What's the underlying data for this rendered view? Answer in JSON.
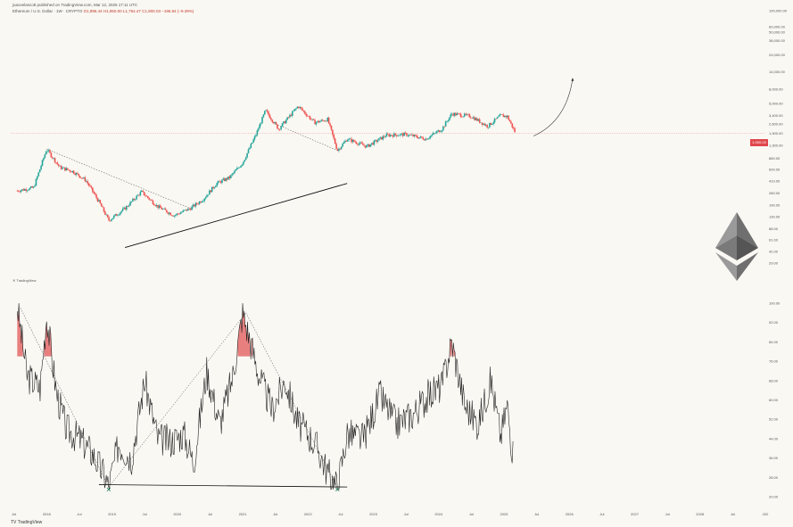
{
  "header": {
    "publisher_line": "joaovelasco8 published on TradingView.com, Mar 12, 2025 17:11 UTC",
    "symbol_line": "Ethereum / U.S. Dollar · 1W · CRYPTO",
    "ohlc_text": "O1,896.44 H1,950.00 L1,754.47 C1,900.03 −196.84 (−9.39%)"
  },
  "price_badge": "1,900.03",
  "watermark_text": "TradingView",
  "footer_logo": "TradingView",
  "colors": {
    "background": "#faf8f3",
    "up_candle": "#26a69a",
    "down_candle": "#ef5350",
    "oscillator_line": "#222222",
    "overheat_fill": "#e46a6a",
    "trendline": "#111111",
    "eth_logo": "#8a8a8a"
  },
  "icons": {
    "watermark": "tradingview-icon",
    "logo": "ethereum-logo-icon",
    "bottom_markers": "x-marker-icon"
  },
  "chart_data": [
    {
      "type": "candlestick",
      "scale": "log",
      "ylim": [
        15,
        100000
      ],
      "y_ticks": [
        "100,000.00",
        "60,000.00",
        "50,000.00",
        "38,000.00",
        "24,000.00",
        "14,000.00",
        "8,000.00",
        "5,000.00",
        "3,400.00",
        "2,600.00",
        "1,900.00",
        "1,300.00",
        "860.00",
        "600.00",
        "410.00",
        "280.00",
        "190.00",
        "130.00",
        "88.00",
        "61.00",
        "42.00",
        "29.00"
      ],
      "x_ticks": [
        "Jul",
        "2018",
        "Jul",
        "2019",
        "Jul",
        "2020",
        "Jul",
        "2021",
        "Jul",
        "2022",
        "Jul",
        "2023",
        "Jul",
        "2024",
        "Jul",
        "2025",
        "Jul",
        "2026",
        "Jul",
        "2027",
        "Jul",
        "2028",
        "Jul",
        "202"
      ],
      "close_series": {
        "x": [
          2017.55,
          2017.8,
          2018.0,
          2018.2,
          2018.4,
          2018.6,
          2018.8,
          2018.95,
          2019.2,
          2019.45,
          2019.7,
          2019.95,
          2020.2,
          2020.4,
          2020.6,
          2020.8,
          2021.0,
          2021.2,
          2021.35,
          2021.55,
          2021.85,
          2022.1,
          2022.3,
          2022.45,
          2022.6,
          2022.9,
          2023.2,
          2023.5,
          2023.8,
          2024.05,
          2024.2,
          2024.5,
          2024.75,
          2024.95,
          2025.05,
          2025.18
        ],
        "y": [
          300,
          330,
          1150,
          640,
          560,
          420,
          210,
          115,
          170,
          290,
          180,
          135,
          170,
          230,
          380,
          460,
          740,
          1800,
          4000,
          2200,
          4600,
          2700,
          3000,
          1100,
          1600,
          1250,
          1800,
          1850,
          1600,
          2200,
          3600,
          3300,
          2400,
          3400,
          3300,
          1900
        ]
      },
      "annotations": [
        "dashed trend: 2018 peak to 2020 low",
        "solid support line: 2019 to 2022",
        "projection curve to 2026"
      ]
    },
    {
      "type": "line",
      "ylim": [
        20,
        100
      ],
      "y_ticks": [
        "100.00",
        "92.00",
        "84.00",
        "76.00",
        "68.00",
        "60.00",
        "52.00",
        "44.00",
        "36.00",
        "28.00",
        "20.00"
      ],
      "x": [
        2017.55,
        2017.7,
        2017.9,
        2018.0,
        2018.15,
        2018.3,
        2018.5,
        2018.7,
        2018.9,
        2018.95,
        2019.1,
        2019.3,
        2019.5,
        2019.7,
        2019.9,
        2020.1,
        2020.25,
        2020.45,
        2020.65,
        2020.85,
        2021.0,
        2021.1,
        2021.25,
        2021.45,
        2021.65,
        2021.85,
        2022.0,
        2022.15,
        2022.3,
        2022.45,
        2022.6,
        2022.85,
        2023.1,
        2023.35,
        2023.6,
        2023.85,
        2024.05,
        2024.2,
        2024.4,
        2024.6,
        2024.8,
        2024.95,
        2025.05,
        2025.15
      ],
      "y": [
        99,
        70,
        65,
        95,
        63,
        48,
        44,
        38,
        28,
        24,
        42,
        36,
        68,
        44,
        43,
        46,
        34,
        72,
        50,
        70,
        96,
        86,
        70,
        56,
        68,
        50,
        46,
        40,
        30,
        24,
        46,
        44,
        62,
        50,
        54,
        62,
        66,
        84,
        58,
        50,
        68,
        45,
        58,
        33
      ],
      "shaded_above": 78,
      "markers": [
        "2018.95 low",
        "2022.45 low"
      ],
      "annotations": [
        "dashed trend: 2017 high to 2018 low",
        "dashed trend: 2018 low to 2021 high",
        "dashed trend: 2021 high to 2022 low",
        "solid line: 2018 low to 2022 low"
      ]
    }
  ]
}
